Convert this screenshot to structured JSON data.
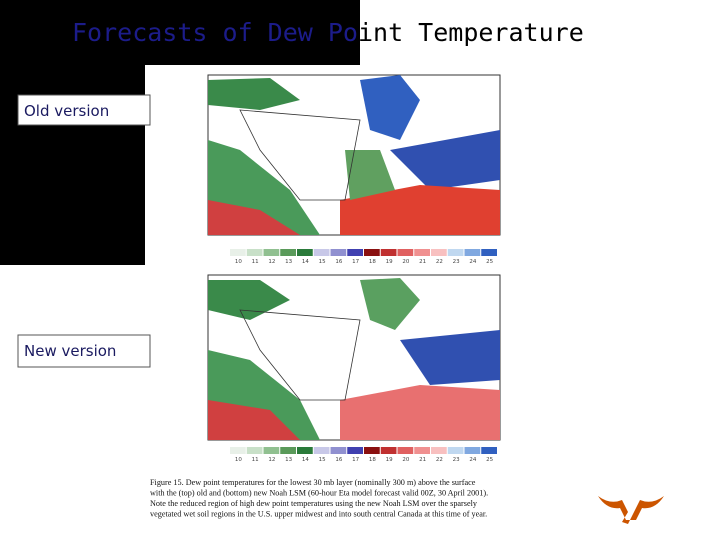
{
  "header": {
    "title": "Forecasts of Dew Point Temperature"
  },
  "labels": {
    "old": "Old version",
    "new": "New version"
  },
  "colorbar": {
    "ticks": [
      "10",
      "11",
      "12",
      "13",
      "14",
      "15",
      "16",
      "17",
      "18",
      "19",
      "20",
      "21",
      "22",
      "23",
      "24",
      "25"
    ]
  },
  "caption": {
    "lines": [
      "Figure 15.  Dew point temperatures for the lowest 30 mb layer (nominally 300 m) above the surface",
      "with the (top) old and (bottom) new Noah LSM (60-hour Eta model forecast valid 00Z, 30 April 2001).",
      "Note the reduced region of high dew point temperatures using the new Noah LSM over the sparsely",
      "vegetated wet soil regions in the U.S. upper midwest and into south central Canada at this time of year."
    ]
  }
}
